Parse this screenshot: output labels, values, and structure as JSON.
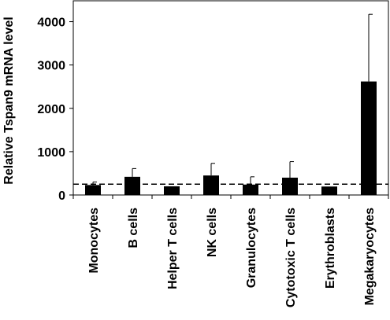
{
  "chart_data": {
    "type": "bar",
    "title": "",
    "xlabel": "",
    "ylabel": "Relative Tspan9 mRNA level",
    "ylim": [
      0,
      4500
    ],
    "yticks": [
      0,
      1000,
      2000,
      3000,
      4000
    ],
    "ytick_labels": [
      "0",
      "1000",
      "2000",
      "3000",
      "4000"
    ],
    "categories": [
      "Monocytes",
      "B cells",
      "Helper T cells",
      "NK cells",
      "Granulocytes",
      "Cytotoxic T cells",
      "Erythroblasts",
      "Megakaryocytes"
    ],
    "values": [
      230,
      420,
      200,
      450,
      240,
      400,
      195,
      2620
    ],
    "error_upper": [
      70,
      190,
      0,
      280,
      180,
      370,
      0,
      1550
    ],
    "reference_line": 250,
    "reference_style": "dashed",
    "bar_color": "#000000",
    "grid": false,
    "legend": "none"
  }
}
